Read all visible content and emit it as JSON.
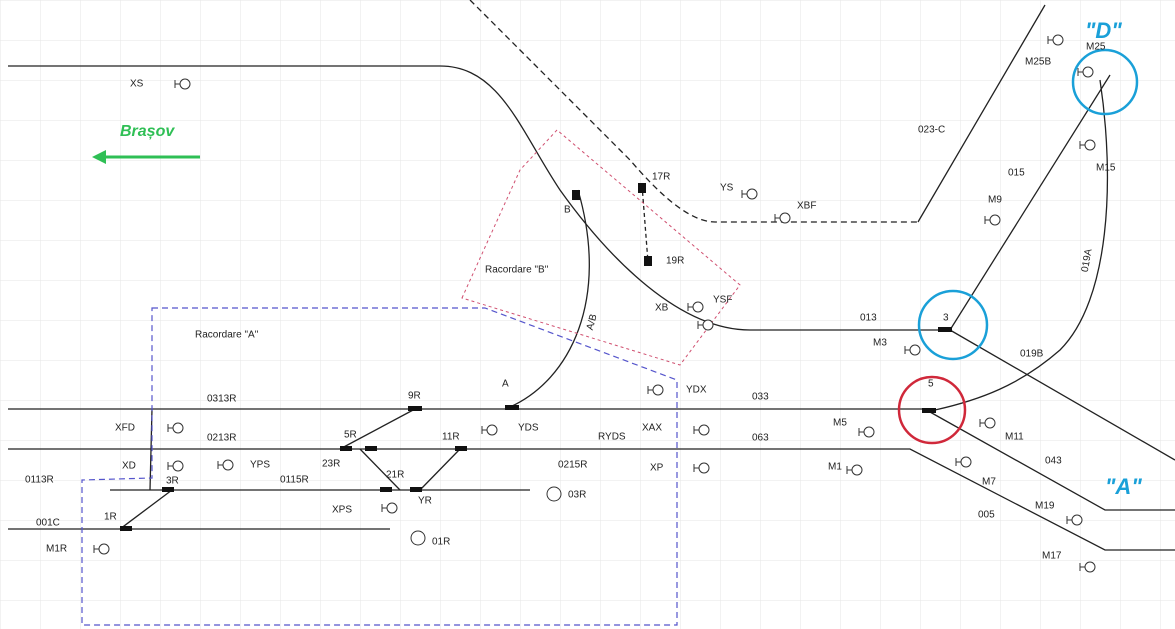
{
  "direction": "Brașov",
  "areas": [
    "Racordare \"A\"",
    "Racordare \"B\""
  ],
  "stations": [
    "\"D\"",
    "\"A\""
  ],
  "signals": [
    "XS",
    "YS",
    "XBF",
    "XB",
    "YSF",
    "YDX",
    "XAX",
    "XP",
    "YDS",
    "RYDS",
    "XFD",
    "XD",
    "YPS",
    "XPS",
    "M1R",
    "M5",
    "M1",
    "M3",
    "M9",
    "M15",
    "M25B",
    "M11",
    "M7",
    "M19",
    "M17",
    "M25"
  ],
  "sections": [
    "0313R",
    "0213R",
    "0113R",
    "001C",
    "0115R",
    "0215R",
    "033",
    "063",
    "013",
    "019B",
    "019A",
    "015",
    "023-C",
    "043",
    "005",
    "A/B"
  ],
  "points": [
    "1R",
    "3R",
    "5R",
    "9R",
    "11R",
    "21R",
    "23R",
    "YR",
    "17R",
    "19R",
    "B",
    "A",
    "3",
    "5"
  ],
  "others": [
    "03R",
    "01R"
  ]
}
